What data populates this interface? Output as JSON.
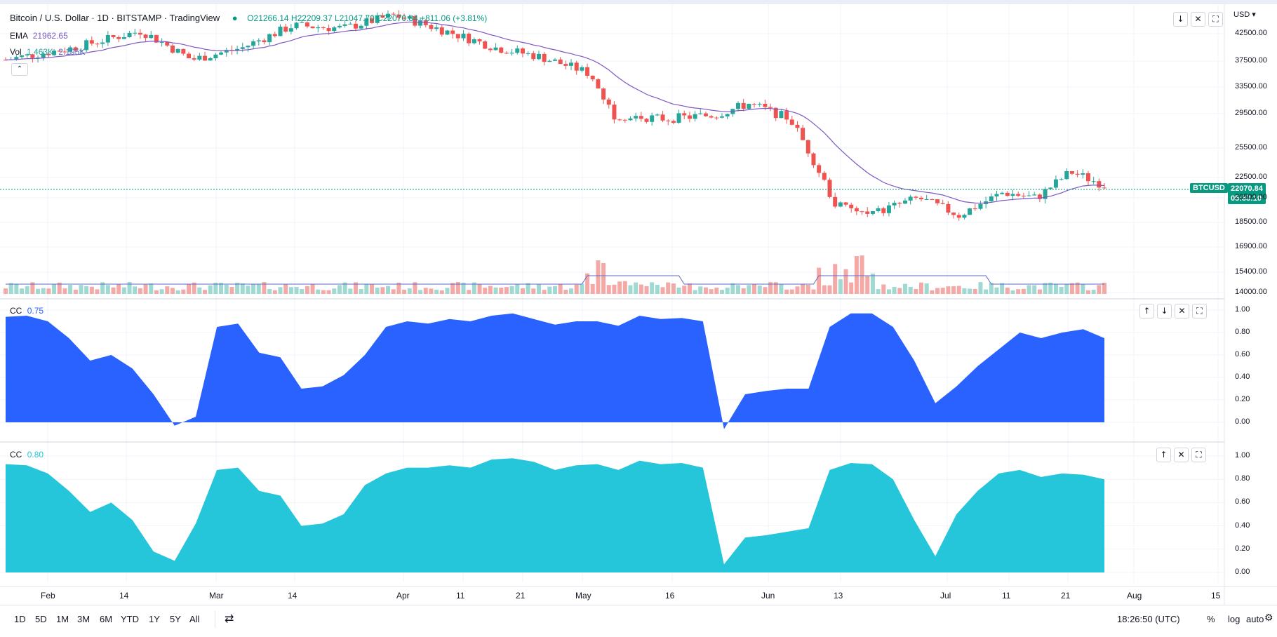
{
  "header": {
    "symbol_title": "Bitcoin / U.S. Dollar · 1D · BITSTAMP · TradingView",
    "ohlc": "O21266.14  H22209.37  L21047.70  C22070.84  +811.06 (+3.81%)",
    "ema_label": "EMA",
    "ema_value": "21962.65",
    "vol_label": "Vol",
    "vol_value_1": "1.463K",
    "vol_value_2": "2.195K",
    "currency": "USD"
  },
  "price_pane": {
    "y_ticks": [
      "42500.00",
      "37500.00",
      "33500.00",
      "29500.00",
      "25500.00",
      "22500.00",
      "20500.00",
      "18500.00",
      "16900.00",
      "15400.00",
      "14000.00"
    ],
    "symbol_tag": "BTCUSD",
    "last_price": "22070.84",
    "countdown": "05:33:10"
  },
  "indicator_1": {
    "name": "CC",
    "value": "0.75",
    "color": "#2962ff",
    "y_ticks": [
      "1.00",
      "0.80",
      "0.60",
      "0.40",
      "0.20",
      "0.00"
    ]
  },
  "indicator_2": {
    "name": "CC",
    "value": "0.80",
    "color": "#26c6da",
    "y_ticks": [
      "1.00",
      "0.80",
      "0.60",
      "0.40",
      "0.20",
      "0.00"
    ]
  },
  "pane_controls": {
    "up": "↑",
    "down": "↓",
    "close": "✕",
    "maximize": "⛶"
  },
  "x_axis": [
    "Feb",
    "14",
    "Mar",
    "14",
    "Apr",
    "11",
    "21",
    "May",
    "16",
    "Jun",
    "13",
    "Jul",
    "11",
    "21",
    "Aug",
    "15"
  ],
  "timeframes": [
    "1D",
    "5D",
    "1M",
    "3M",
    "6M",
    "YTD",
    "1Y",
    "5Y",
    "All"
  ],
  "footer": {
    "clock": "18:26:50 (UTC)",
    "percent": "%",
    "log": "log",
    "auto": "auto"
  },
  "colors": {
    "up": "#26a69a",
    "down": "#ef5350",
    "ema": "#7e57c2",
    "last": "#089981"
  },
  "chart_data": {
    "type": "candlestick",
    "cc1": [
      0.94,
      0.95,
      0.9,
      0.75,
      0.55,
      0.6,
      0.48,
      0.25,
      -0.03,
      0.05,
      0.85,
      0.88,
      0.62,
      0.58,
      0.3,
      0.32,
      0.42,
      0.6,
      0.85,
      0.9,
      0.88,
      0.92,
      0.9,
      0.95,
      0.97,
      0.92,
      0.87,
      0.9,
      0.9,
      0.86,
      0.95,
      0.92,
      0.93,
      0.9,
      -0.06,
      0.25,
      0.28,
      0.3,
      0.3,
      0.85,
      0.97,
      0.97,
      0.85,
      0.55,
      0.17,
      0.32,
      0.5,
      0.65,
      0.8,
      0.75,
      0.8,
      0.83,
      0.75
    ],
    "cc2": [
      0.93,
      0.92,
      0.85,
      0.7,
      0.52,
      0.6,
      0.45,
      0.18,
      0.1,
      0.42,
      0.88,
      0.9,
      0.7,
      0.66,
      0.4,
      0.42,
      0.5,
      0.75,
      0.85,
      0.9,
      0.9,
      0.92,
      0.9,
      0.97,
      0.98,
      0.95,
      0.88,
      0.92,
      0.93,
      0.88,
      0.96,
      0.93,
      0.94,
      0.9,
      0.07,
      0.3,
      0.32,
      0.35,
      0.38,
      0.88,
      0.94,
      0.93,
      0.8,
      0.45,
      0.14,
      0.5,
      0.7,
      0.85,
      0.88,
      0.82,
      0.85,
      0.84,
      0.8
    ]
  }
}
